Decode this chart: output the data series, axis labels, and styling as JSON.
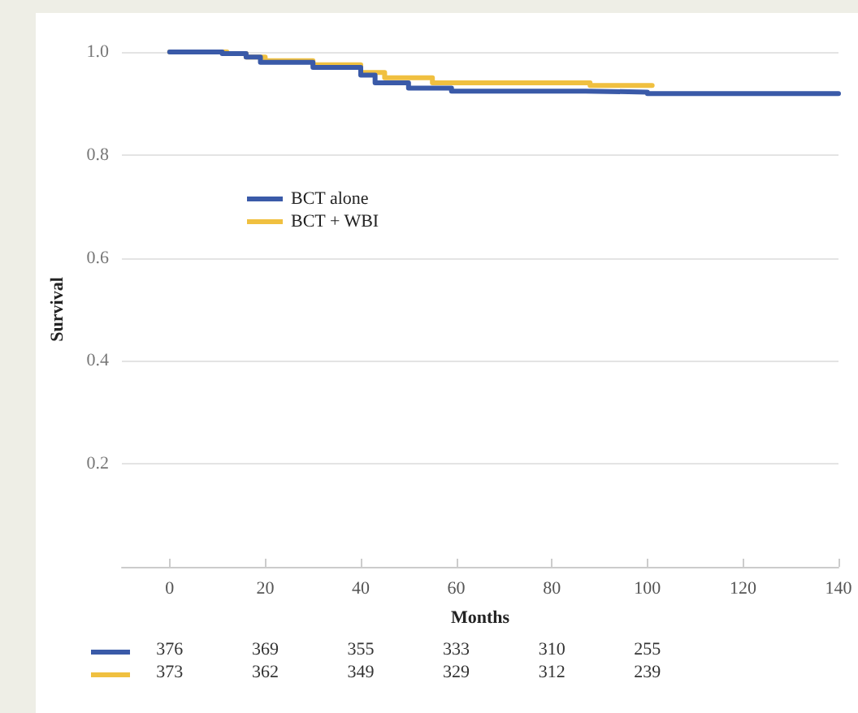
{
  "chart_data": {
    "type": "step",
    "xlabel": "Months",
    "ylabel": "Survival",
    "xlim": [
      -10,
      140
    ],
    "xticks": [
      0,
      20,
      40,
      60,
      80,
      100,
      120,
      140
    ],
    "ylim": [
      0,
      1.0
    ],
    "yticks": [
      {
        "value": 0,
        "label": null
      },
      {
        "value": 0.2,
        "label": "0.2"
      },
      {
        "value": 0.4,
        "label": "0.4"
      },
      {
        "value": 0.6,
        "label": "0.6"
      },
      {
        "value": 0.8,
        "label": "0.8"
      },
      {
        "value": 1.0,
        "label": "1.0"
      }
    ],
    "grid": "y",
    "legend": "top left",
    "marker": "none",
    "line_style": "solid",
    "series": [
      {
        "name": "BCT alone",
        "color": "#3a5aa8",
        "x": [
          0,
          11,
          16,
          19,
          30,
          40,
          43,
          50,
          57,
          59,
          87,
          100,
          140
        ],
        "values": [
          1.0,
          0.997,
          0.99,
          0.98,
          0.97,
          0.955,
          0.94,
          0.93,
          0.93,
          0.924,
          0.922,
          0.919,
          0.919
        ]
      },
      {
        "name": "BCT + WBI",
        "color": "#f0c040",
        "x": [
          0,
          12,
          16,
          20,
          30,
          40,
          45,
          55,
          80,
          88,
          101
        ],
        "values": [
          1.0,
          0.997,
          0.99,
          0.983,
          0.975,
          0.96,
          0.95,
          0.94,
          0.94,
          0.935,
          0.935
        ]
      }
    ],
    "annotations": [
      "376",
      "369",
      "355",
      "333",
      "310",
      "255",
      "373",
      "362",
      "349",
      "329",
      "312",
      "239"
    ]
  }
}
